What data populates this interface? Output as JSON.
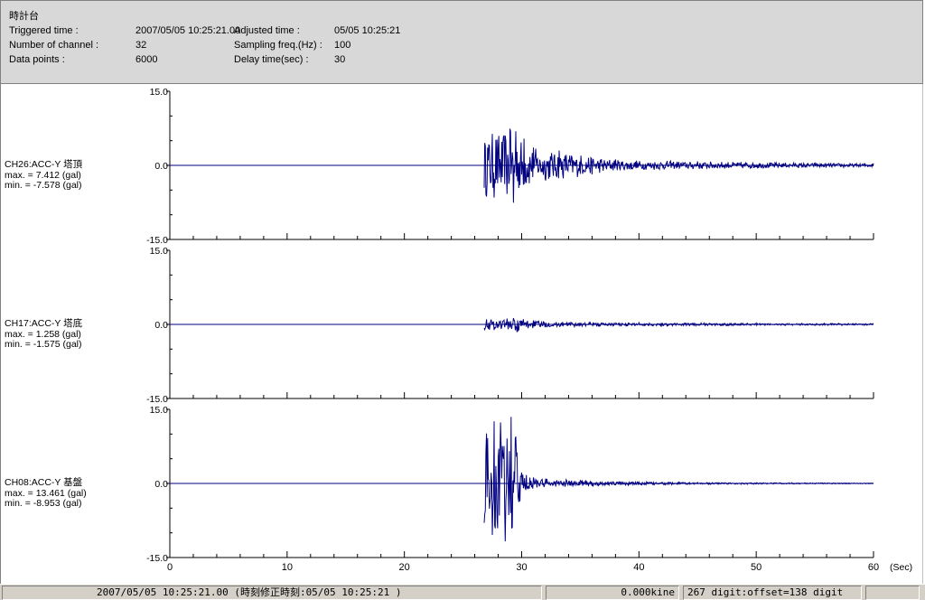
{
  "header": {
    "title": "時計台",
    "rows": [
      {
        "label": "Triggered time :",
        "value": "2007/05/05 10:25:21.00",
        "label2": "Adjusted time :",
        "value2": "05/05 10:25:21"
      },
      {
        "label": "Number of channel :",
        "value": "32",
        "label2": "Sampling freq.(Hz) :",
        "value2": "100"
      },
      {
        "label": "Data points :",
        "value": "6000",
        "label2": "Delay time(sec) :",
        "value2": "30"
      }
    ]
  },
  "chart_data": {
    "type": "line",
    "x_unit": "(Sec)",
    "xlim": [
      0,
      60
    ],
    "x_ticks": [
      "0",
      "10",
      "20",
      "30",
      "40",
      "50",
      "60"
    ],
    "colors": {
      "trace": "#000080",
      "axis": "#000000"
    },
    "channels": [
      {
        "name": "CH26:ACC-Y 塔頂",
        "max": "max. = 7.412 (gal)",
        "min": "min. = -7.578 (gal)",
        "y_ticks": [
          "15.0",
          "0.0",
          "-15.0"
        ],
        "ylim": [
          -15,
          15
        ],
        "noise_before": 0.3,
        "onset": 26.8,
        "peaks": [
          [
            29.0,
            7.412
          ],
          [
            29.3,
            -7.578
          ],
          [
            29.5,
            6.9
          ],
          [
            30.2,
            5.4
          ],
          [
            31.0,
            3.6
          ],
          [
            33.2,
            3.0
          ],
          [
            38.0,
            1.2
          ],
          [
            45.0,
            0.8
          ],
          [
            55.0,
            0.5
          ],
          [
            60.0,
            0.4
          ]
        ]
      },
      {
        "name": "CH17:ACC-Y 塔底",
        "max": "max. = 1.258 (gal)",
        "min": "min. = -1.575 (gal)",
        "y_ticks": [
          "15.0",
          "0.0",
          "-15.0"
        ],
        "ylim": [
          -15,
          15
        ],
        "noise_before": 0.1,
        "onset": 26.8,
        "peaks": [
          [
            29.3,
            1.258
          ],
          [
            29.6,
            -1.575
          ],
          [
            31.0,
            0.8
          ],
          [
            33.5,
            0.5
          ],
          [
            40.0,
            0.35
          ],
          [
            50.0,
            0.25
          ],
          [
            60.0,
            0.2
          ]
        ]
      },
      {
        "name": "CH08:ACC-Y 基盤",
        "max": "max. = 13.461 (gal)",
        "min": "min. = -8.953 (gal)",
        "y_ticks": [
          "15.0",
          "0.0",
          "-15.0"
        ],
        "ylim": [
          -15,
          15
        ],
        "noise_before": 0.1,
        "onset": 26.8,
        "peaks": [
          [
            29.1,
            13.461
          ],
          [
            29.2,
            -8.953
          ],
          [
            29.5,
            9.5
          ],
          [
            30.0,
            2.2
          ],
          [
            31.0,
            1.2
          ],
          [
            35.0,
            0.6
          ],
          [
            45.0,
            0.2
          ],
          [
            60.0,
            0.1
          ]
        ]
      }
    ]
  },
  "status": {
    "time": "2007/05/05 10:25:21.00 (時刻修正時刻:05/05 10:25:21 )",
    "velocity": "0.000kine",
    "digit": "267 digit:offset=138 digit"
  }
}
